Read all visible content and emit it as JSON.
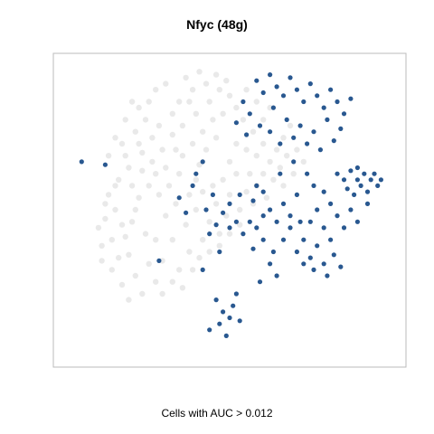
{
  "chart_data": {
    "type": "scatter",
    "title": "Nfyc (48g)",
    "xlabel": "Cells with AUC > 0.012",
    "ylabel": "",
    "grid": false,
    "legend": "none",
    "colors": {
      "low": "#e5e5e5",
      "high": "#1d4f8a"
    },
    "series": [
      {
        "name": "",
        "color": "#e5e5e5",
        "points": [
          [
            0.12,
            0.38
          ],
          [
            0.15,
            0.3
          ],
          [
            0.18,
            0.45
          ],
          [
            0.2,
            0.35
          ],
          [
            0.22,
            0.5
          ],
          [
            0.25,
            0.42
          ],
          [
            0.14,
            0.55
          ],
          [
            0.17,
            0.6
          ],
          [
            0.21,
            0.58
          ],
          [
            0.24,
            0.63
          ],
          [
            0.19,
            0.68
          ],
          [
            0.23,
            0.72
          ],
          [
            0.27,
            0.66
          ],
          [
            0.29,
            0.55
          ],
          [
            0.31,
            0.48
          ],
          [
            0.28,
            0.4
          ],
          [
            0.26,
            0.32
          ],
          [
            0.22,
            0.28
          ],
          [
            0.18,
            0.25
          ],
          [
            0.13,
            0.47
          ],
          [
            0.16,
            0.5
          ],
          [
            0.3,
            0.7
          ],
          [
            0.33,
            0.75
          ],
          [
            0.29,
            0.78
          ],
          [
            0.25,
            0.8
          ],
          [
            0.22,
            0.76
          ],
          [
            0.35,
            0.62
          ],
          [
            0.34,
            0.52
          ],
          [
            0.32,
            0.58
          ],
          [
            0.36,
            0.68
          ],
          [
            0.38,
            0.55
          ],
          [
            0.4,
            0.6
          ],
          [
            0.37,
            0.45
          ],
          [
            0.33,
            0.4
          ],
          [
            0.3,
            0.33
          ],
          [
            0.28,
            0.26
          ],
          [
            0.24,
            0.22
          ],
          [
            0.2,
            0.2
          ],
          [
            0.36,
            0.78
          ],
          [
            0.4,
            0.82
          ],
          [
            0.42,
            0.76
          ],
          [
            0.38,
            0.86
          ],
          [
            0.44,
            0.86
          ],
          [
            0.45,
            0.8
          ],
          [
            0.43,
            0.7
          ],
          [
            0.41,
            0.65
          ],
          [
            0.39,
            0.72
          ],
          [
            0.46,
            0.74
          ],
          [
            0.48,
            0.82
          ],
          [
            0.5,
            0.88
          ],
          [
            0.47,
            0.9
          ],
          [
            0.52,
            0.84
          ],
          [
            0.35,
            0.3
          ],
          [
            0.38,
            0.36
          ],
          [
            0.42,
            0.4
          ],
          [
            0.44,
            0.46
          ],
          [
            0.4,
            0.5
          ],
          [
            0.46,
            0.52
          ],
          [
            0.48,
            0.6
          ],
          [
            0.5,
            0.66
          ],
          [
            0.52,
            0.72
          ],
          [
            0.45,
            0.58
          ],
          [
            0.42,
            0.56
          ],
          [
            0.5,
            0.55
          ],
          [
            0.52,
            0.62
          ],
          [
            0.55,
            0.7
          ],
          [
            0.57,
            0.76
          ],
          [
            0.54,
            0.8
          ],
          [
            0.58,
            0.68
          ],
          [
            0.6,
            0.72
          ],
          [
            0.56,
            0.62
          ],
          [
            0.47,
            0.42
          ],
          [
            0.49,
            0.48
          ],
          [
            0.53,
            0.5
          ],
          [
            0.55,
            0.56
          ],
          [
            0.58,
            0.58
          ],
          [
            0.6,
            0.62
          ],
          [
            0.62,
            0.66
          ],
          [
            0.64,
            0.7
          ],
          [
            0.66,
            0.74
          ],
          [
            0.68,
            0.78
          ],
          [
            0.63,
            0.6
          ],
          [
            0.65,
            0.64
          ],
          [
            0.67,
            0.68
          ],
          [
            0.7,
            0.7
          ],
          [
            0.72,
            0.66
          ],
          [
            0.69,
            0.62
          ],
          [
            0.66,
            0.58
          ],
          [
            0.61,
            0.54
          ],
          [
            0.57,
            0.52
          ],
          [
            0.15,
            0.4
          ],
          [
            0.17,
            0.34
          ],
          [
            0.19,
            0.41
          ],
          [
            0.21,
            0.46
          ],
          [
            0.23,
            0.54
          ],
          [
            0.26,
            0.58
          ],
          [
            0.28,
            0.62
          ],
          [
            0.31,
            0.64
          ],
          [
            0.34,
            0.7
          ],
          [
            0.27,
            0.74
          ],
          [
            0.24,
            0.69
          ],
          [
            0.2,
            0.64
          ],
          [
            0.16,
            0.58
          ],
          [
            0.13,
            0.52
          ],
          [
            0.11,
            0.44
          ],
          [
            0.12,
            0.33
          ],
          [
            0.33,
            0.82
          ],
          [
            0.35,
            0.86
          ],
          [
            0.39,
            0.9
          ],
          [
            0.43,
            0.92
          ],
          [
            0.46,
            0.95
          ],
          [
            0.49,
            0.93
          ],
          [
            0.3,
            0.22
          ],
          [
            0.33,
            0.26
          ],
          [
            0.36,
            0.24
          ],
          [
            0.39,
            0.3
          ],
          [
            0.41,
            0.34
          ],
          [
            0.44,
            0.36
          ],
          [
            0.47,
            0.38
          ],
          [
            0.5,
            0.42
          ],
          [
            0.53,
            0.45
          ],
          [
            0.26,
            0.86
          ],
          [
            0.23,
            0.84
          ],
          [
            0.19,
            0.8
          ],
          [
            0.16,
            0.74
          ],
          [
            0.14,
            0.68
          ],
          [
            0.18,
            0.72
          ],
          [
            0.21,
            0.86
          ],
          [
            0.28,
            0.9
          ],
          [
            0.31,
            0.92
          ],
          [
            0.37,
            0.94
          ],
          [
            0.41,
            0.96
          ],
          [
            0.55,
            0.9
          ],
          [
            0.58,
            0.86
          ],
          [
            0.6,
            0.8
          ],
          [
            0.62,
            0.84
          ]
        ]
      },
      {
        "name": "",
        "color": "#1d4f8a",
        "points": [
          [
            0.58,
            0.93
          ],
          [
            0.6,
            0.89
          ],
          [
            0.62,
            0.95
          ],
          [
            0.64,
            0.91
          ],
          [
            0.66,
            0.88
          ],
          [
            0.68,
            0.94
          ],
          [
            0.7,
            0.9
          ],
          [
            0.72,
            0.86
          ],
          [
            0.74,
            0.92
          ],
          [
            0.76,
            0.88
          ],
          [
            0.78,
            0.84
          ],
          [
            0.8,
            0.9
          ],
          [
            0.82,
            0.86
          ],
          [
            0.84,
            0.82
          ],
          [
            0.86,
            0.87
          ],
          [
            0.63,
            0.84
          ],
          [
            0.67,
            0.8
          ],
          [
            0.71,
            0.78
          ],
          [
            0.75,
            0.76
          ],
          [
            0.79,
            0.8
          ],
          [
            0.83,
            0.77
          ],
          [
            0.73,
            0.72
          ],
          [
            0.77,
            0.7
          ],
          [
            0.81,
            0.73
          ],
          [
            0.54,
            0.86
          ],
          [
            0.56,
            0.82
          ],
          [
            0.52,
            0.79
          ],
          [
            0.55,
            0.75
          ],
          [
            0.59,
            0.78
          ],
          [
            0.62,
            0.76
          ],
          [
            0.65,
            0.72
          ],
          [
            0.69,
            0.74
          ],
          [
            0.82,
            0.62
          ],
          [
            0.84,
            0.6
          ],
          [
            0.86,
            0.63
          ],
          [
            0.88,
            0.6
          ],
          [
            0.9,
            0.62
          ],
          [
            0.92,
            0.6
          ],
          [
            0.94,
            0.58
          ],
          [
            0.91,
            0.56
          ],
          [
            0.89,
            0.58
          ],
          [
            0.87,
            0.55
          ],
          [
            0.85,
            0.57
          ],
          [
            0.93,
            0.62
          ],
          [
            0.95,
            0.6
          ],
          [
            0.88,
            0.64
          ],
          [
            0.78,
            0.56
          ],
          [
            0.8,
            0.52
          ],
          [
            0.76,
            0.5
          ],
          [
            0.74,
            0.46
          ],
          [
            0.78,
            0.44
          ],
          [
            0.82,
            0.48
          ],
          [
            0.84,
            0.44
          ],
          [
            0.8,
            0.4
          ],
          [
            0.76,
            0.38
          ],
          [
            0.72,
            0.4
          ],
          [
            0.7,
            0.36
          ],
          [
            0.74,
            0.34
          ],
          [
            0.78,
            0.32
          ],
          [
            0.81,
            0.35
          ],
          [
            0.83,
            0.31
          ],
          [
            0.79,
            0.28
          ],
          [
            0.75,
            0.3
          ],
          [
            0.72,
            0.32
          ],
          [
            0.66,
            0.52
          ],
          [
            0.68,
            0.48
          ],
          [
            0.64,
            0.46
          ],
          [
            0.62,
            0.5
          ],
          [
            0.6,
            0.48
          ],
          [
            0.58,
            0.44
          ],
          [
            0.56,
            0.46
          ],
          [
            0.54,
            0.42
          ],
          [
            0.52,
            0.46
          ],
          [
            0.5,
            0.44
          ],
          [
            0.48,
            0.49
          ],
          [
            0.46,
            0.45
          ],
          [
            0.5,
            0.52
          ],
          [
            0.53,
            0.55
          ],
          [
            0.57,
            0.53
          ],
          [
            0.6,
            0.56
          ],
          [
            0.44,
            0.42
          ],
          [
            0.47,
            0.36
          ],
          [
            0.66,
            0.4
          ],
          [
            0.63,
            0.36
          ],
          [
            0.68,
            0.44
          ],
          [
            0.71,
            0.46
          ],
          [
            0.86,
            0.5
          ],
          [
            0.88,
            0.46
          ],
          [
            0.46,
            0.2
          ],
          [
            0.48,
            0.16
          ],
          [
            0.5,
            0.14
          ],
          [
            0.47,
            0.12
          ],
          [
            0.44,
            0.1
          ],
          [
            0.49,
            0.08
          ],
          [
            0.51,
            0.18
          ],
          [
            0.53,
            0.13
          ],
          [
            0.52,
            0.22
          ],
          [
            0.42,
            0.3
          ],
          [
            0.39,
            0.58
          ],
          [
            0.35,
            0.54
          ],
          [
            0.37,
            0.49
          ],
          [
            0.6,
            0.4
          ],
          [
            0.57,
            0.37
          ],
          [
            0.62,
            0.32
          ],
          [
            0.45,
            0.55
          ],
          [
            0.43,
            0.5
          ],
          [
            0.4,
            0.62
          ],
          [
            0.42,
            0.66
          ],
          [
            0.13,
            0.65
          ],
          [
            0.06,
            0.66
          ],
          [
            0.29,
            0.33
          ],
          [
            0.58,
            0.58
          ],
          [
            0.65,
            0.62
          ],
          [
            0.7,
            0.55
          ],
          [
            0.75,
            0.58
          ],
          [
            0.73,
            0.62
          ],
          [
            0.69,
            0.66
          ],
          [
            0.91,
            0.52
          ],
          [
            0.64,
            0.28
          ],
          [
            0.59,
            0.26
          ]
        ]
      }
    ],
    "xlim": [
      0,
      1
    ],
    "ylim": [
      0,
      1
    ]
  }
}
